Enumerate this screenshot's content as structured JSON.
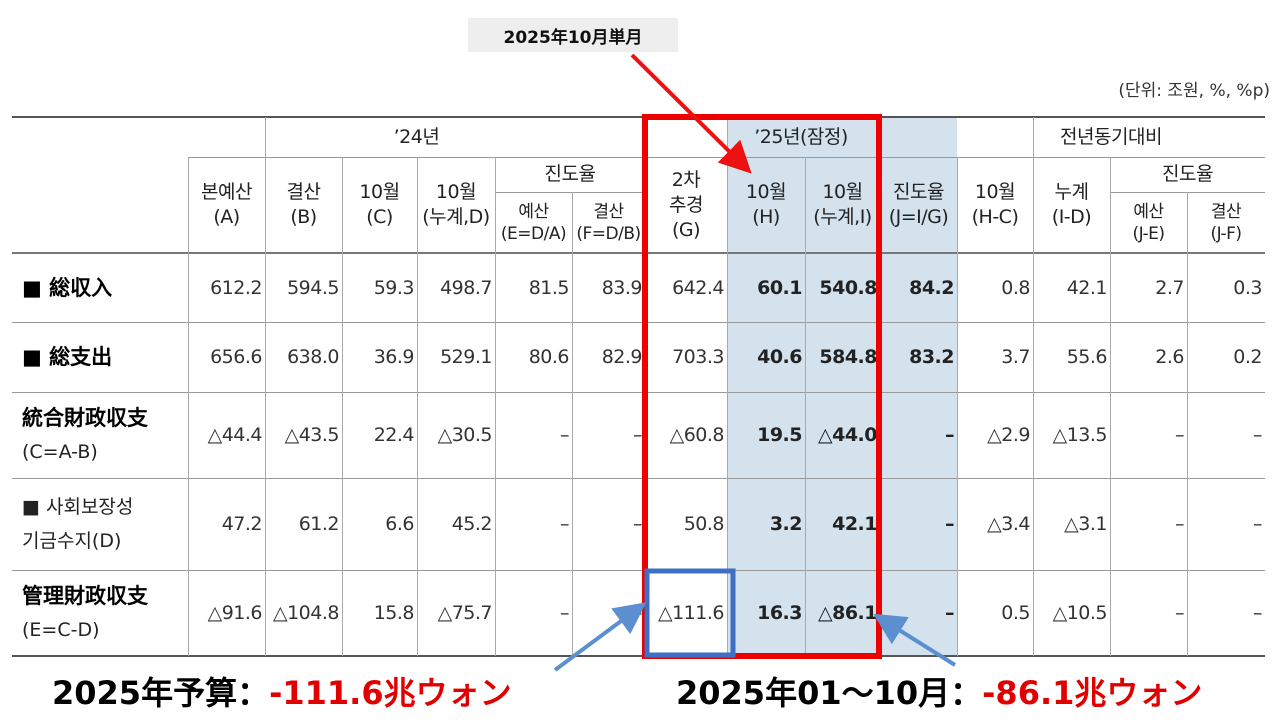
{
  "header": {
    "unit": "(단위: 조원, %, %p)",
    "groups": [
      "’24년",
      "’25년(잠정)",
      "전년동기대비"
    ],
    "progress": [
      "진도율",
      "진도율"
    ],
    "columns": [
      [
        "본예산",
        "(A)"
      ],
      [
        "결산",
        "(B)"
      ],
      [
        "10월",
        "(C)"
      ],
      [
        "10월",
        "(누계,D)"
      ],
      [
        "예산",
        "(E=D/A)"
      ],
      [
        "결산",
        "(F=D/B)"
      ],
      [
        "2차",
        "추경",
        "(G)"
      ],
      [
        "10월",
        "(H)"
      ],
      [
        "10월",
        "(누계,I)"
      ],
      [
        "진도율",
        "(J=I/G)"
      ],
      [
        "10월",
        "(H-C)"
      ],
      [
        "누계",
        "(I-D)"
      ],
      [
        "예산",
        "(J-E)"
      ],
      [
        "결산",
        "(J-F)"
      ]
    ]
  },
  "table": {
    "rows": [
      {
        "label": [
          "■ 総収入"
        ],
        "cells": [
          "612.2",
          "594.5",
          "59.3",
          "498.7",
          "81.5",
          "83.9",
          "642.4",
          "60.1",
          "540.8",
          "84.2",
          "0.8",
          "42.1",
          "2.7",
          "0.3"
        ]
      },
      {
        "label": [
          "■ 総支出"
        ],
        "cells": [
          "656.6",
          "638.0",
          "36.9",
          "529.1",
          "80.6",
          "82.9",
          "703.3",
          "40.6",
          "584.8",
          "83.2",
          "3.7",
          "55.6",
          "2.6",
          "0.2"
        ]
      },
      {
        "label": [
          "統合財政収支",
          "(C=A-B)"
        ],
        "cells": [
          "△44.4",
          "△43.5",
          "22.4",
          "△30.5",
          "–",
          "–",
          "△60.8",
          "19.5",
          "△44.0",
          "–",
          "△2.9",
          "△13.5",
          "–",
          "–"
        ]
      },
      {
        "label": [
          "■ 사회보장성",
          "기금수지(D)"
        ],
        "cells": [
          "47.2",
          "61.2",
          "6.6",
          "45.2",
          "–",
          "–",
          "50.8",
          "3.2",
          "42.1",
          "–",
          "△3.4",
          "△3.1",
          "–",
          "–"
        ]
      },
      {
        "label": [
          "管理財政収支",
          "(E=C-D)"
        ],
        "cells": [
          "△91.6",
          "△104.8",
          "15.8",
          "△75.7",
          "–",
          "–",
          "△111.6",
          "16.3",
          "△86.1",
          "–",
          "0.5",
          "△10.5",
          "–",
          "–"
        ]
      }
    ]
  },
  "callout": "2025年10月単月",
  "footer": [
    {
      "label": "2025年予算：",
      "value": "-111.6兆ウォン"
    },
    {
      "label": "2025年01～10月：",
      "value": "-86.1兆ウォン"
    }
  ]
}
